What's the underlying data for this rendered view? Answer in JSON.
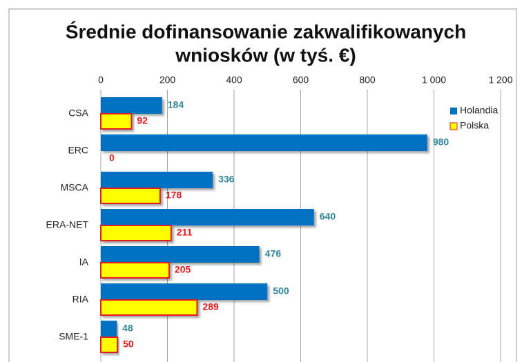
{
  "chart_data": {
    "type": "hbar",
    "title": [
      "Średnie dofinansowanie zakwalifikowanych",
      "wniosków (w tyś. €)"
    ],
    "categories": [
      "CSA",
      "ERC",
      "MSCA",
      "ERA-NET",
      "IA",
      "RIA",
      "SME-1"
    ],
    "series": [
      {
        "name": "Holandia",
        "color": "#0070c0",
        "label_color": "#31859c",
        "values": [
          184,
          980,
          336,
          640,
          476,
          500,
          48
        ]
      },
      {
        "name": "Polska",
        "color": "#ffff00",
        "border_color": "#e31b1b",
        "label_color": "#e31b1b",
        "values": [
          92,
          0,
          178,
          211,
          205,
          289,
          50
        ]
      }
    ],
    "xlim": [
      0,
      1200
    ],
    "xticks": [
      0,
      200,
      400,
      600,
      800,
      {
        "value": 1000,
        "label": "1 000"
      },
      {
        "value": 1200,
        "label": "1 200"
      }
    ],
    "grid": true,
    "legend": "top-right"
  }
}
